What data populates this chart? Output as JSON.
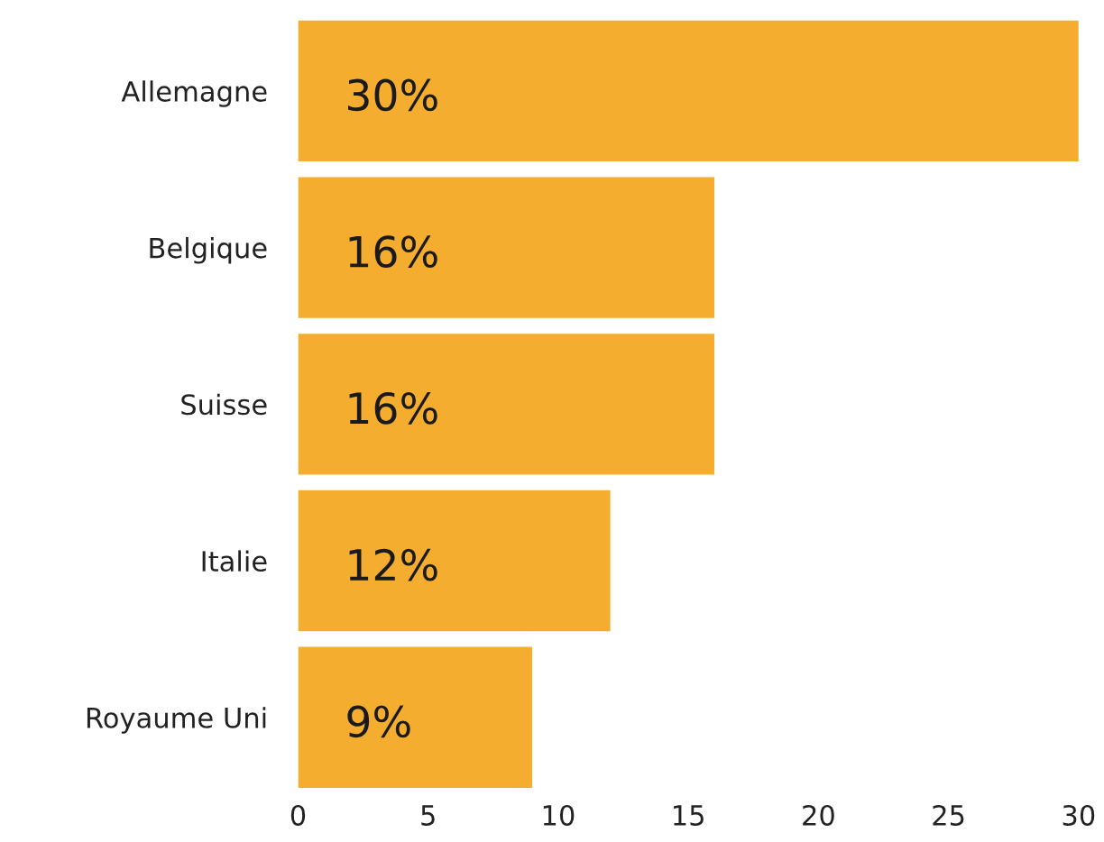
{
  "chart_data": {
    "type": "bar",
    "orientation": "horizontal",
    "categories": [
      "Allemagne",
      "Belgique",
      "Suisse",
      "Italie",
      "Royaume Uni"
    ],
    "values": [
      30,
      16,
      16,
      12,
      9
    ],
    "value_labels": [
      "30%",
      "16%",
      "16%",
      "12%",
      "9%"
    ],
    "color": "#f5ad2f",
    "xlim": [
      0,
      30
    ],
    "xticks": [
      0,
      5,
      10,
      15,
      20,
      25,
      30
    ],
    "grid": false,
    "legend": false
  }
}
